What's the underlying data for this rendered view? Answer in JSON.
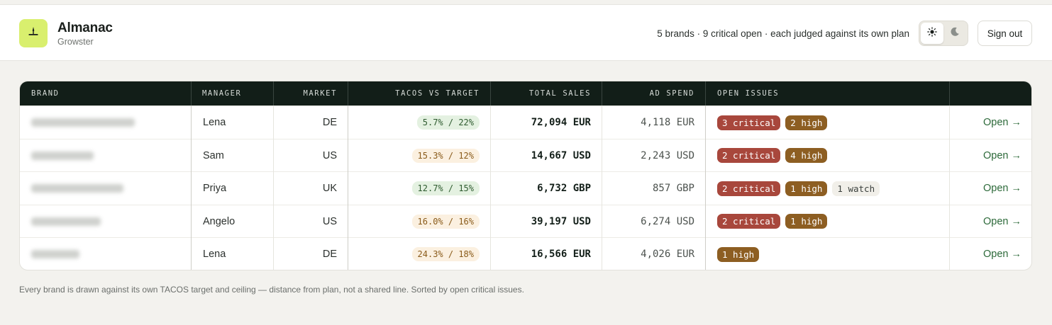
{
  "app": {
    "title": "Almanac",
    "subtitle": "Growster"
  },
  "header": {
    "summary": "5 brands · 9 critical open · each judged against its own plan",
    "sign_out_label": "Sign out"
  },
  "colors": {
    "accent": "#d9ef6e",
    "header_dark": "#121e18",
    "critical": "#a8473c",
    "high": "#8d5e22",
    "tacos_ok_bg": "#e4f1e1",
    "tacos_over_bg": "#fbf0e0",
    "link": "#2d6a3a"
  },
  "icons": {
    "logo": "sparkle-icon",
    "light": "sun-icon",
    "dark": "moon-icon"
  },
  "table": {
    "columns": {
      "brand": "BRAND",
      "manager": "MANAGER",
      "market": "MARKET",
      "tacos": "TACOS VS TARGET",
      "sales": "TOTAL SALES",
      "spend": "AD SPEND",
      "issues": "OPEN ISSUES"
    },
    "rows": [
      {
        "manager": "Lena",
        "market": "DE",
        "tacos": "5.7% / 22%",
        "tacos_status": "ok",
        "sales": "72,094 EUR",
        "spend": "4,118 EUR",
        "issues": [
          {
            "label": "3 critical",
            "kind": "critical"
          },
          {
            "label": "2 high",
            "kind": "high"
          }
        ],
        "action": "Open →"
      },
      {
        "manager": "Sam",
        "market": "US",
        "tacos": "15.3% / 12%",
        "tacos_status": "over",
        "sales": "14,667 USD",
        "spend": "2,243 USD",
        "issues": [
          {
            "label": "2 critical",
            "kind": "critical"
          },
          {
            "label": "4 high",
            "kind": "high"
          }
        ],
        "action": "Open →"
      },
      {
        "manager": "Priya",
        "market": "UK",
        "tacos": "12.7% / 15%",
        "tacos_status": "ok",
        "sales": "6,732 GBP",
        "spend": "857 GBP",
        "issues": [
          {
            "label": "2 critical",
            "kind": "critical"
          },
          {
            "label": "1 high",
            "kind": "high"
          },
          {
            "label": "1 watch",
            "kind": "watch"
          }
        ],
        "action": "Open →"
      },
      {
        "manager": "Angelo",
        "market": "US",
        "tacos": "16.0% / 16%",
        "tacos_status": "over",
        "sales": "39,197 USD",
        "spend": "6,274 USD",
        "issues": [
          {
            "label": "2 critical",
            "kind": "critical"
          },
          {
            "label": "1 high",
            "kind": "high"
          }
        ],
        "action": "Open →"
      },
      {
        "manager": "Lena",
        "market": "DE",
        "tacos": "24.3% / 18%",
        "tacos_status": "over",
        "sales": "16,566 EUR",
        "spend": "4,026 EUR",
        "issues": [
          {
            "label": "1 high",
            "kind": "high"
          }
        ],
        "action": "Open →"
      }
    ]
  },
  "footnote": "Every brand is drawn against its own TACOS target and ceiling — distance from plan, not a shared line. Sorted by open critical issues."
}
